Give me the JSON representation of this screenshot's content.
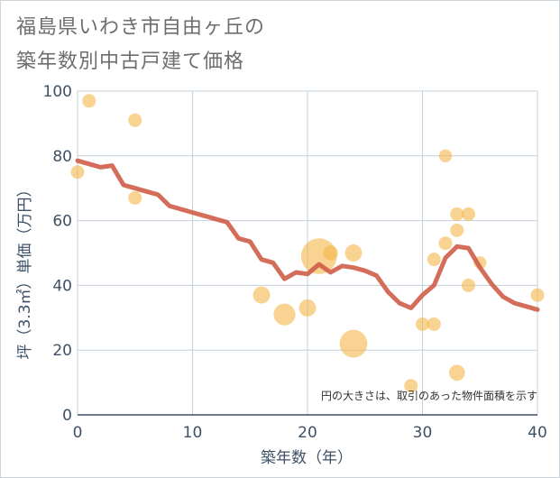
{
  "title_line1": "福島県いわき市自由ヶ丘の",
  "title_line2": "築年数別中古戸建て価格",
  "chart_data": {
    "type": "scatter",
    "title": "福島県いわき市自由ヶ丘の築年数別中古戸建て価格",
    "xlabel": "築年数（年）",
    "ylabel": "坪（3.3㎡）単価（万円）",
    "xlim": [
      0,
      40
    ],
    "ylim": [
      0,
      100
    ],
    "xticks": [
      "0",
      "10",
      "20",
      "30",
      "40"
    ],
    "yticks": [
      "0",
      "20",
      "40",
      "60",
      "80",
      "100"
    ],
    "note": "円の大きさは、取引のあった物件面積を示す",
    "colors": {
      "bubble": "#f5b54a",
      "trend": "#cf5d48",
      "grid": "#c6d0da",
      "axis": "#3d5166"
    },
    "bubbles": [
      {
        "x": 0,
        "y": 75,
        "size": 1
      },
      {
        "x": 1,
        "y": 97,
        "size": 1
      },
      {
        "x": 5,
        "y": 91,
        "size": 1
      },
      {
        "x": 5,
        "y": 67,
        "size": 1
      },
      {
        "x": 16,
        "y": 37,
        "size": 1.6
      },
      {
        "x": 18,
        "y": 31,
        "size": 2.6
      },
      {
        "x": 20,
        "y": 33,
        "size": 1.6
      },
      {
        "x": 21,
        "y": 49,
        "size": 7
      },
      {
        "x": 22,
        "y": 50,
        "size": 1.2
      },
      {
        "x": 24,
        "y": 50,
        "size": 1.6
      },
      {
        "x": 24,
        "y": 22,
        "size": 4.2
      },
      {
        "x": 29,
        "y": 9,
        "size": 1
      },
      {
        "x": 30,
        "y": 28,
        "size": 1
      },
      {
        "x": 31,
        "y": 28,
        "size": 1
      },
      {
        "x": 31,
        "y": 48,
        "size": 1
      },
      {
        "x": 32,
        "y": 80,
        "size": 0.9
      },
      {
        "x": 32,
        "y": 53,
        "size": 1
      },
      {
        "x": 33,
        "y": 62,
        "size": 1
      },
      {
        "x": 33,
        "y": 57,
        "size": 1
      },
      {
        "x": 33,
        "y": 13,
        "size": 1.4
      },
      {
        "x": 34,
        "y": 62,
        "size": 1
      },
      {
        "x": 34,
        "y": 40,
        "size": 1
      },
      {
        "x": 35,
        "y": 47,
        "size": 0.9
      },
      {
        "x": 40,
        "y": 37,
        "size": 1
      }
    ],
    "trend": {
      "x": [
        0,
        1,
        2,
        3,
        4,
        5,
        6,
        7,
        8,
        9,
        10,
        11,
        12,
        13,
        14,
        15,
        16,
        17,
        18,
        19,
        20,
        21,
        22,
        23,
        24,
        25,
        26,
        27,
        28,
        29,
        30,
        31,
        32,
        33,
        34,
        35,
        36,
        37,
        38,
        39,
        40
      ],
      "y": [
        78.5,
        77.5,
        76.5,
        77,
        71,
        70,
        69,
        68,
        64.5,
        63.5,
        62.5,
        61.5,
        60.5,
        59.5,
        54.5,
        53.5,
        48,
        47,
        42,
        44,
        43.5,
        46.5,
        44,
        46,
        45.5,
        44.5,
        43,
        38,
        34.5,
        33,
        37,
        40,
        48.5,
        52,
        51.5,
        45.5,
        40.5,
        36.5,
        34.5,
        33.5,
        32.5
      ]
    }
  }
}
